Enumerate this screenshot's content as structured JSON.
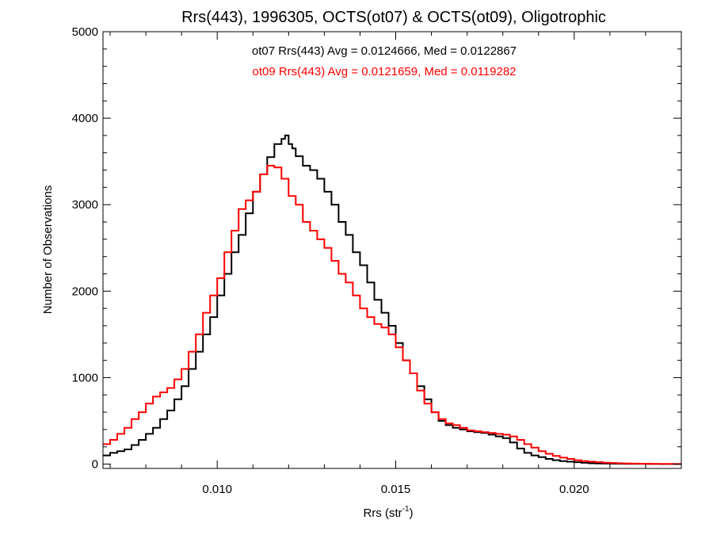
{
  "chart_data": {
    "type": "line",
    "title": "Rrs(443), 1996305, OCTS(ot07) & OCTS(ot09), Oligotrophic",
    "xlabel": {
      "base": "Rrs (str",
      "sup": "-1",
      "tail": ")"
    },
    "ylabel": "Number of Observations",
    "xlim": [
      0.0068,
      0.023
    ],
    "ylim": [
      -50,
      5000
    ],
    "xticks": [
      {
        "value": 0.01,
        "label": "0.010"
      },
      {
        "value": 0.015,
        "label": "0.015"
      },
      {
        "value": 0.02,
        "label": "0.020"
      }
    ],
    "yticks": [
      {
        "value": 0,
        "label": "0"
      },
      {
        "value": 1000,
        "label": "1000"
      },
      {
        "value": 2000,
        "label": "2000"
      },
      {
        "value": 3000,
        "label": "3000"
      },
      {
        "value": 4000,
        "label": "4000"
      },
      {
        "value": 5000,
        "label": "5000"
      }
    ],
    "annotations": [
      {
        "text": "ot07 Rrs(443) Avg = 0.0124666, Med = 0.0122867",
        "color": "#000000"
      },
      {
        "text": "ot09 Rrs(443) Avg = 0.0121659, Med = 0.0119282",
        "color": "#ff0000"
      }
    ],
    "series": [
      {
        "color": "#000000",
        "x": [
          0.0068,
          0.007,
          0.0072,
          0.0074,
          0.0076,
          0.0078,
          0.008,
          0.0082,
          0.0084,
          0.0086,
          0.0088,
          0.009,
          0.0092,
          0.0094,
          0.0096,
          0.0098,
          0.01,
          0.0102,
          0.0104,
          0.0106,
          0.0108,
          0.011,
          0.0112,
          0.0114,
          0.0116,
          0.0118,
          0.0119,
          0.012,
          0.0121,
          0.0122,
          0.0124,
          0.0126,
          0.0128,
          0.013,
          0.0132,
          0.0134,
          0.0136,
          0.0138,
          0.014,
          0.0142,
          0.0144,
          0.0146,
          0.0148,
          0.015,
          0.0152,
          0.0154,
          0.0156,
          0.0158,
          0.016,
          0.0162,
          0.0164,
          0.0166,
          0.0168,
          0.017,
          0.0172,
          0.0174,
          0.0176,
          0.0178,
          0.018,
          0.0182,
          0.0184,
          0.0186,
          0.0188,
          0.019,
          0.0192,
          0.0194,
          0.0196,
          0.0198,
          0.02,
          0.0202,
          0.0204,
          0.0206,
          0.0208,
          0.021,
          0.0212,
          0.0214,
          0.0216,
          0.0218,
          0.022,
          0.0222,
          0.0224,
          0.0226,
          0.0228,
          0.023
        ],
        "y": [
          100,
          130,
          150,
          170,
          220,
          280,
          350,
          420,
          520,
          620,
          750,
          900,
          1100,
          1300,
          1500,
          1700,
          1950,
          2200,
          2450,
          2650,
          2900,
          3150,
          3350,
          3550,
          3700,
          3760,
          3800,
          3700,
          3650,
          3560,
          3450,
          3400,
          3300,
          3150,
          3000,
          2800,
          2650,
          2450,
          2300,
          2100,
          1900,
          1750,
          1600,
          1400,
          1200,
          1050,
          900,
          750,
          600,
          500,
          450,
          420,
          400,
          380,
          370,
          360,
          340,
          320,
          300,
          250,
          180,
          130,
          100,
          80,
          60,
          45,
          35,
          28,
          22,
          15,
          10,
          8,
          6,
          5,
          4,
          3,
          2,
          2,
          1,
          1,
          0,
          0,
          0,
          0
        ]
      },
      {
        "color": "#ff0000",
        "x": [
          0.0068,
          0.007,
          0.0072,
          0.0074,
          0.0076,
          0.0078,
          0.008,
          0.0082,
          0.0084,
          0.0086,
          0.0088,
          0.009,
          0.0092,
          0.0094,
          0.0096,
          0.0098,
          0.01,
          0.0102,
          0.0104,
          0.0106,
          0.0108,
          0.011,
          0.0112,
          0.0114,
          0.0116,
          0.0118,
          0.012,
          0.0122,
          0.0124,
          0.0126,
          0.0128,
          0.013,
          0.0132,
          0.0134,
          0.0136,
          0.0138,
          0.014,
          0.0142,
          0.0144,
          0.0146,
          0.0148,
          0.015,
          0.0152,
          0.0154,
          0.0156,
          0.0158,
          0.016,
          0.0162,
          0.0164,
          0.0166,
          0.0168,
          0.017,
          0.0172,
          0.0174,
          0.0176,
          0.0178,
          0.018,
          0.0182,
          0.0184,
          0.0186,
          0.0188,
          0.019,
          0.0192,
          0.0194,
          0.0196,
          0.0198,
          0.02,
          0.0202,
          0.0204,
          0.0206,
          0.0208,
          0.021,
          0.0212,
          0.0214,
          0.0216,
          0.0218,
          0.022,
          0.0222,
          0.0224,
          0.0226,
          0.0228,
          0.023
        ],
        "y": [
          230,
          280,
          350,
          420,
          520,
          600,
          700,
          780,
          830,
          880,
          980,
          1100,
          1300,
          1500,
          1750,
          1950,
          2150,
          2450,
          2700,
          2950,
          3050,
          3150,
          3350,
          3450,
          3430,
          3300,
          3100,
          3000,
          2800,
          2700,
          2600,
          2500,
          2350,
          2200,
          2100,
          1950,
          1800,
          1700,
          1620,
          1580,
          1500,
          1350,
          1200,
          1050,
          850,
          700,
          600,
          520,
          470,
          450,
          420,
          390,
          380,
          370,
          360,
          350,
          340,
          320,
          280,
          230,
          190,
          150,
          120,
          95,
          75,
          60,
          45,
          35,
          28,
          22,
          17,
          13,
          10,
          8,
          6,
          5,
          4,
          3,
          2,
          2,
          1,
          1
        ]
      }
    ]
  }
}
